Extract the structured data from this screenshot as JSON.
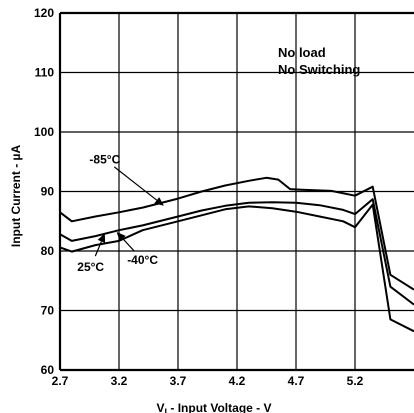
{
  "chart_data": {
    "type": "line",
    "title": "",
    "xlabel_main": "V",
    "xlabel_sub": "I",
    "xlabel_rest": " - Input Voltage - V",
    "ylabel": "Input Current - µA",
    "xlim": [
      2.7,
      5.7
    ],
    "ylim": [
      60,
      120
    ],
    "grid": true,
    "x_ticks": [
      "2.7",
      "3.2",
      "3.7",
      "4.2",
      "4.7",
      "5.2"
    ],
    "y_ticks": [
      "60",
      "70",
      "80",
      "90",
      "100",
      "110",
      "120"
    ],
    "notes": [
      "No load",
      "No Switching"
    ],
    "series": [
      {
        "name": "-85°C",
        "x": [
          2.7,
          2.8,
          3.0,
          3.2,
          3.4,
          3.7,
          3.9,
          4.1,
          4.3,
          4.45,
          4.55,
          4.65,
          4.75,
          5.0,
          5.2,
          5.35,
          5.5,
          5.7
        ],
        "y": [
          86.5,
          85.0,
          85.8,
          86.5,
          87.3,
          88.8,
          90.0,
          91.0,
          91.8,
          92.3,
          92.0,
          90.4,
          90.3,
          90.1,
          89.3,
          90.8,
          76.0,
          73.5
        ]
      },
      {
        "name": "-40°C",
        "x": [
          2.7,
          2.8,
          3.0,
          3.2,
          3.4,
          3.7,
          3.9,
          4.1,
          4.3,
          4.5,
          4.7,
          4.9,
          5.1,
          5.2,
          5.35,
          5.5,
          5.7
        ],
        "y": [
          82.8,
          81.7,
          82.5,
          83.5,
          84.3,
          85.8,
          86.8,
          87.6,
          88.1,
          88.2,
          88.1,
          87.7,
          86.9,
          86.2,
          88.7,
          74.0,
          71.0
        ]
      },
      {
        "name": "25°C",
        "x": [
          2.7,
          2.8,
          3.0,
          3.2,
          3.4,
          3.7,
          3.9,
          4.1,
          4.3,
          4.5,
          4.7,
          4.9,
          5.1,
          5.2,
          5.35,
          5.5,
          5.7
        ],
        "y": [
          80.6,
          79.9,
          81.0,
          81.7,
          83.5,
          85.0,
          86.0,
          87.0,
          87.5,
          87.2,
          86.6,
          85.8,
          85.0,
          84.0,
          87.8,
          68.5,
          66.5
        ]
      }
    ],
    "annotations": [
      {
        "label": "-85°C",
        "text_x": 3.08,
        "text_y": 94.7,
        "arrow_to_x": 3.58,
        "arrow_to_y": 87.6
      },
      {
        "label": "25°C",
        "text_x": 2.96,
        "text_y": 76.6,
        "arrow_to_x": 3.08,
        "arrow_to_y": 83.0
      },
      {
        "label": "-40°C",
        "text_x": 3.4,
        "text_y": 77.8,
        "arrow_to_x": 3.18,
        "arrow_to_y": 83.2
      }
    ]
  }
}
